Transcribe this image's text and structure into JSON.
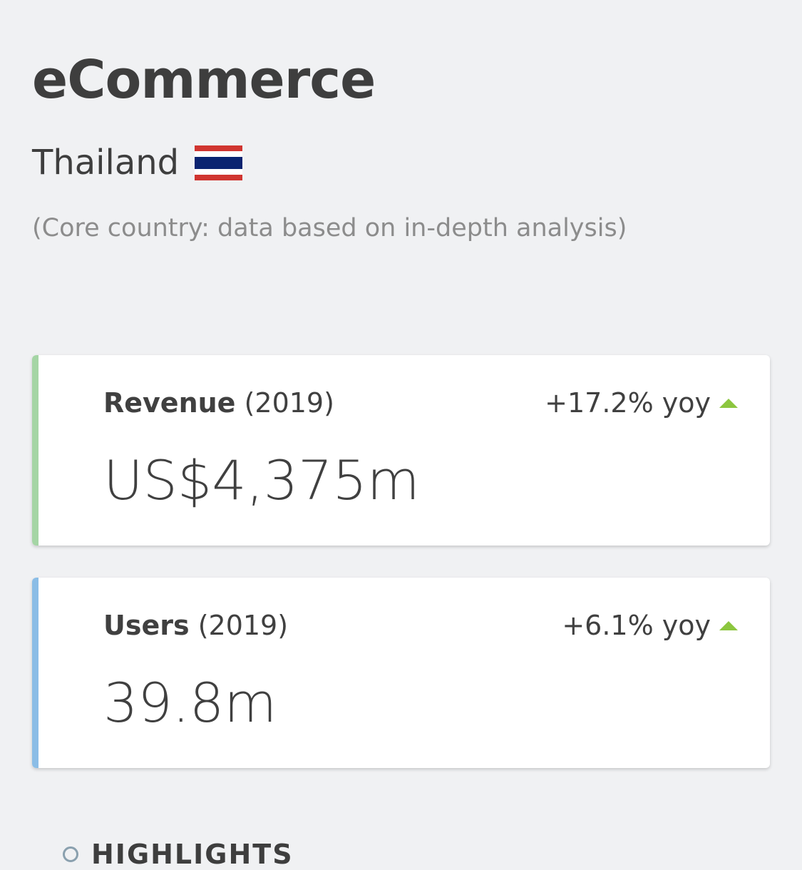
{
  "header": {
    "title": "eCommerce",
    "country": "Thailand",
    "flag_icon": "thailand-flag",
    "note": "(Core country: data based on in-depth analysis)"
  },
  "colors": {
    "revenue_accent": "#a5d5a5",
    "users_accent": "#8bbde6",
    "up_arrow": "#8cc63f"
  },
  "cards": [
    {
      "label": "Revenue",
      "year": "(2019)",
      "change": "+17.2% yoy",
      "trend": "up",
      "value": "US$4,375m"
    },
    {
      "label": "Users",
      "year": "(2019)",
      "change": "+6.1% yoy",
      "trend": "up",
      "value": "39.8m"
    }
  ],
  "highlights": {
    "label": "HIGHLIGHTS",
    "icon": "lightbulb-icon"
  }
}
